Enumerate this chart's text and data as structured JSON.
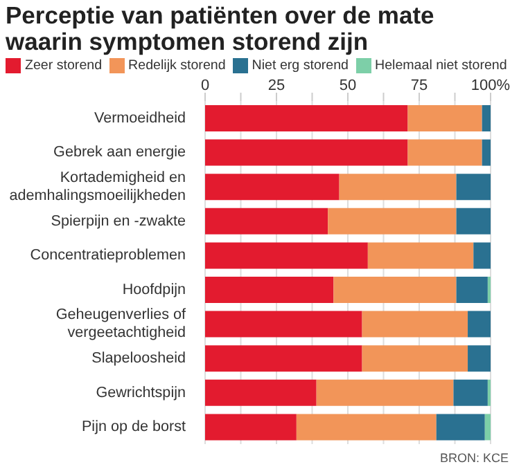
{
  "chart_data": {
    "type": "bar",
    "orientation": "horizontal",
    "stacked": true,
    "title": "Perceptie van patiënten over de mate waarin symptomen storend zijn",
    "categories": [
      "Vermoeidheid",
      "Gebrek aan energie",
      "Kortademigheid en ademhalingsmoeilijkheden",
      "Spierpijn en -zwakte",
      "Concentratieproblemen",
      "Hoofdpijn",
      "Geheugenverlies of vergeetachtigheid",
      "Slapeloosheid",
      "Gewrichtspijn",
      "Pijn op de borst"
    ],
    "series": [
      {
        "name": "Zeer storend",
        "color": "#e31b2f",
        "values": [
          71,
          71,
          47,
          43,
          57,
          45,
          55,
          55,
          39,
          32
        ]
      },
      {
        "name": "Redelijk storend",
        "color": "#f29559",
        "values": [
          26,
          26,
          41,
          45,
          37,
          43,
          37,
          37,
          48,
          49
        ]
      },
      {
        "name": "Niet erg storend",
        "color": "#2a7191",
        "values": [
          3,
          3,
          12,
          12,
          6,
          11,
          8,
          8,
          12,
          17
        ]
      },
      {
        "name": "Helemaal niet storend",
        "color": "#7dcfa8",
        "values": [
          0,
          0,
          0,
          0,
          0,
          1,
          0,
          0,
          1,
          2
        ]
      }
    ],
    "xlim": [
      0,
      100
    ],
    "xticks": [
      0,
      {
        "value": 12.5,
        "label": null
      },
      25,
      {
        "value": 37.5,
        "label": null
      },
      50,
      {
        "value": 62.5,
        "label": null
      },
      75,
      {
        "value": 87.5,
        "label": null
      },
      {
        "value": 100,
        "label": "100%"
      }
    ],
    "grid": "x",
    "legend": "top",
    "annotations": [
      "BRON: KCE"
    ]
  }
}
